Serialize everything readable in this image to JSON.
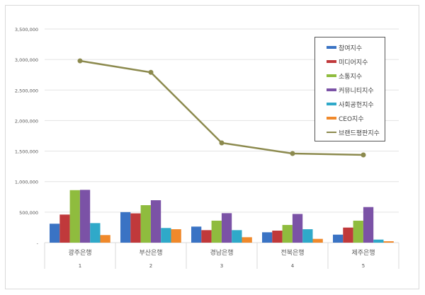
{
  "chart_data": {
    "type": "bar",
    "title": "",
    "categories": [
      "광주은행",
      "부산은행",
      "경남은행",
      "전북은행",
      "제주은행"
    ],
    "category_numbers": [
      "1",
      "2",
      "3",
      "4",
      "5"
    ],
    "ylim": [
      0,
      3500000
    ],
    "yticks": [
      0,
      500000,
      1000000,
      1500000,
      2000000,
      2500000,
      3000000,
      3500000
    ],
    "ytick_labels": [
      "-",
      "500,000",
      "1,000,000",
      "1,500,000",
      "2,000,000",
      "2,500,000",
      "3,000,000",
      "3,500,000"
    ],
    "grid": true,
    "legend_position": "top-right",
    "series": [
      {
        "name": "참여지수",
        "type": "bar",
        "color": "#3a73c4",
        "values": [
          310000,
          500000,
          263000,
          170000,
          131000
        ]
      },
      {
        "name": "미디어지수",
        "type": "bar",
        "color": "#c0393b",
        "values": [
          460000,
          480000,
          205000,
          197000,
          247000
        ]
      },
      {
        "name": "소통지수",
        "type": "bar",
        "color": "#8fbc3e",
        "values": [
          860000,
          614000,
          360000,
          290000,
          360000
        ]
      },
      {
        "name": "커뮤니티지수",
        "type": "bar",
        "color": "#7b52a6",
        "values": [
          865000,
          695000,
          483000,
          470000,
          583000
        ]
      },
      {
        "name": "사회공헌지수",
        "type": "bar",
        "color": "#2fa9c9",
        "values": [
          320000,
          240000,
          205000,
          220000,
          50000
        ]
      },
      {
        "name": "CEO지수",
        "type": "bar",
        "color": "#f0892b",
        "values": [
          124000,
          220000,
          89000,
          62000,
          23000
        ]
      },
      {
        "name": "브랜드평판지수",
        "type": "line",
        "color": "#8c8a4e",
        "values": [
          2978000,
          2790000,
          1634000,
          1460000,
          1437000
        ]
      }
    ]
  }
}
